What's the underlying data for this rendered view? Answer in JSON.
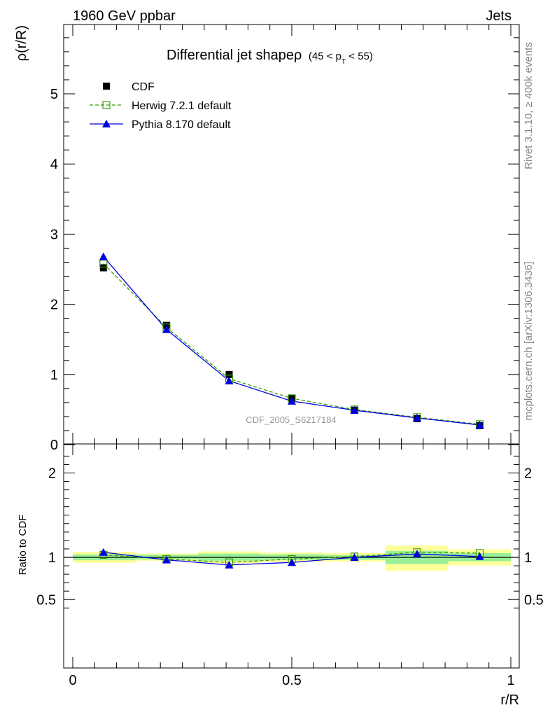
{
  "header": {
    "left": "1960 GeV ppbar",
    "right": "Jets"
  },
  "side_labels": {
    "rivet": "Rivet 3.1.10, ≥ 400k events",
    "mcplots": "mcplots.cern.ch [arXiv:1306.3436]"
  },
  "chart_data": [
    {
      "type": "scatter",
      "panel": "main",
      "title": "Differential jet shapeρ",
      "title_suffix": {
        "prefix": "(45 < p",
        "sub": "T",
        "suffix": " < 55)"
      },
      "ylabel": "ρ(r/R)",
      "xlabel": "",
      "xlim": [
        0,
        1
      ],
      "ylim": [
        0,
        6
      ],
      "y_tick_labels": [
        "0",
        "1",
        "2",
        "3",
        "4",
        "5"
      ],
      "watermark": "CDF_2005_S6217184",
      "legend_position": "top-left",
      "x": [
        0.07,
        0.214,
        0.357,
        0.5,
        0.643,
        0.786,
        0.929
      ],
      "series": [
        {
          "name": "CDF",
          "style": "data",
          "color": "#000000",
          "values": [
            2.52,
            1.7,
            1.0,
            0.66,
            0.49,
            0.37,
            0.27
          ],
          "errors": [
            0.03,
            0.02,
            0.02,
            0.01,
            0.01,
            0.01,
            0.01
          ]
        },
        {
          "name": "Herwig 7.2.1 default",
          "style": "herwig",
          "color": "#3a9d0a",
          "values": [
            2.58,
            1.67,
            0.94,
            0.66,
            0.5,
            0.39,
            0.29
          ]
        },
        {
          "name": "Pythia 8.170 default",
          "style": "pythia",
          "color": "#0000dd",
          "values": [
            2.68,
            1.64,
            0.91,
            0.62,
            0.49,
            0.38,
            0.28
          ]
        }
      ]
    },
    {
      "type": "line",
      "panel": "ratio",
      "ylabel": "Ratio to CDF",
      "xlabel": "r/R",
      "xlim": [
        0,
        1
      ],
      "ylim": [
        0.35,
        2.25
      ],
      "y_tick_labels": [
        "0.5",
        "1",
        "2"
      ],
      "x_tick_labels": [
        "0",
        "0.5",
        "1"
      ],
      "bin_edges": [
        0,
        0.143,
        0.286,
        0.429,
        0.571,
        0.714,
        0.857,
        1.0
      ],
      "band_inner": [
        [
          0.965,
          1.035
        ],
        [
          0.975,
          1.03
        ],
        [
          0.96,
          1.045
        ],
        [
          0.97,
          1.035
        ],
        [
          0.97,
          1.025
        ],
        [
          0.92,
          1.075
        ],
        [
          0.955,
          1.05
        ]
      ],
      "band_outer": [
        [
          0.935,
          1.065
        ],
        [
          0.96,
          1.045
        ],
        [
          0.93,
          1.07
        ],
        [
          0.95,
          1.055
        ],
        [
          0.95,
          1.05
        ],
        [
          0.84,
          1.14
        ],
        [
          0.905,
          1.095
        ]
      ],
      "x": [
        0.07,
        0.214,
        0.357,
        0.5,
        0.643,
        0.786,
        0.929
      ],
      "series": [
        {
          "name": "Herwig 7.2.1 default",
          "style": "herwig",
          "color": "#3a9d0a",
          "values": [
            1.03,
            0.98,
            0.94,
            0.98,
            1.01,
            1.06,
            1.05
          ]
        },
        {
          "name": "Pythia 8.170 default",
          "style": "pythia",
          "color": "#0000dd",
          "values": [
            1.06,
            0.97,
            0.91,
            0.94,
            1.0,
            1.04,
            1.01
          ]
        }
      ]
    }
  ]
}
